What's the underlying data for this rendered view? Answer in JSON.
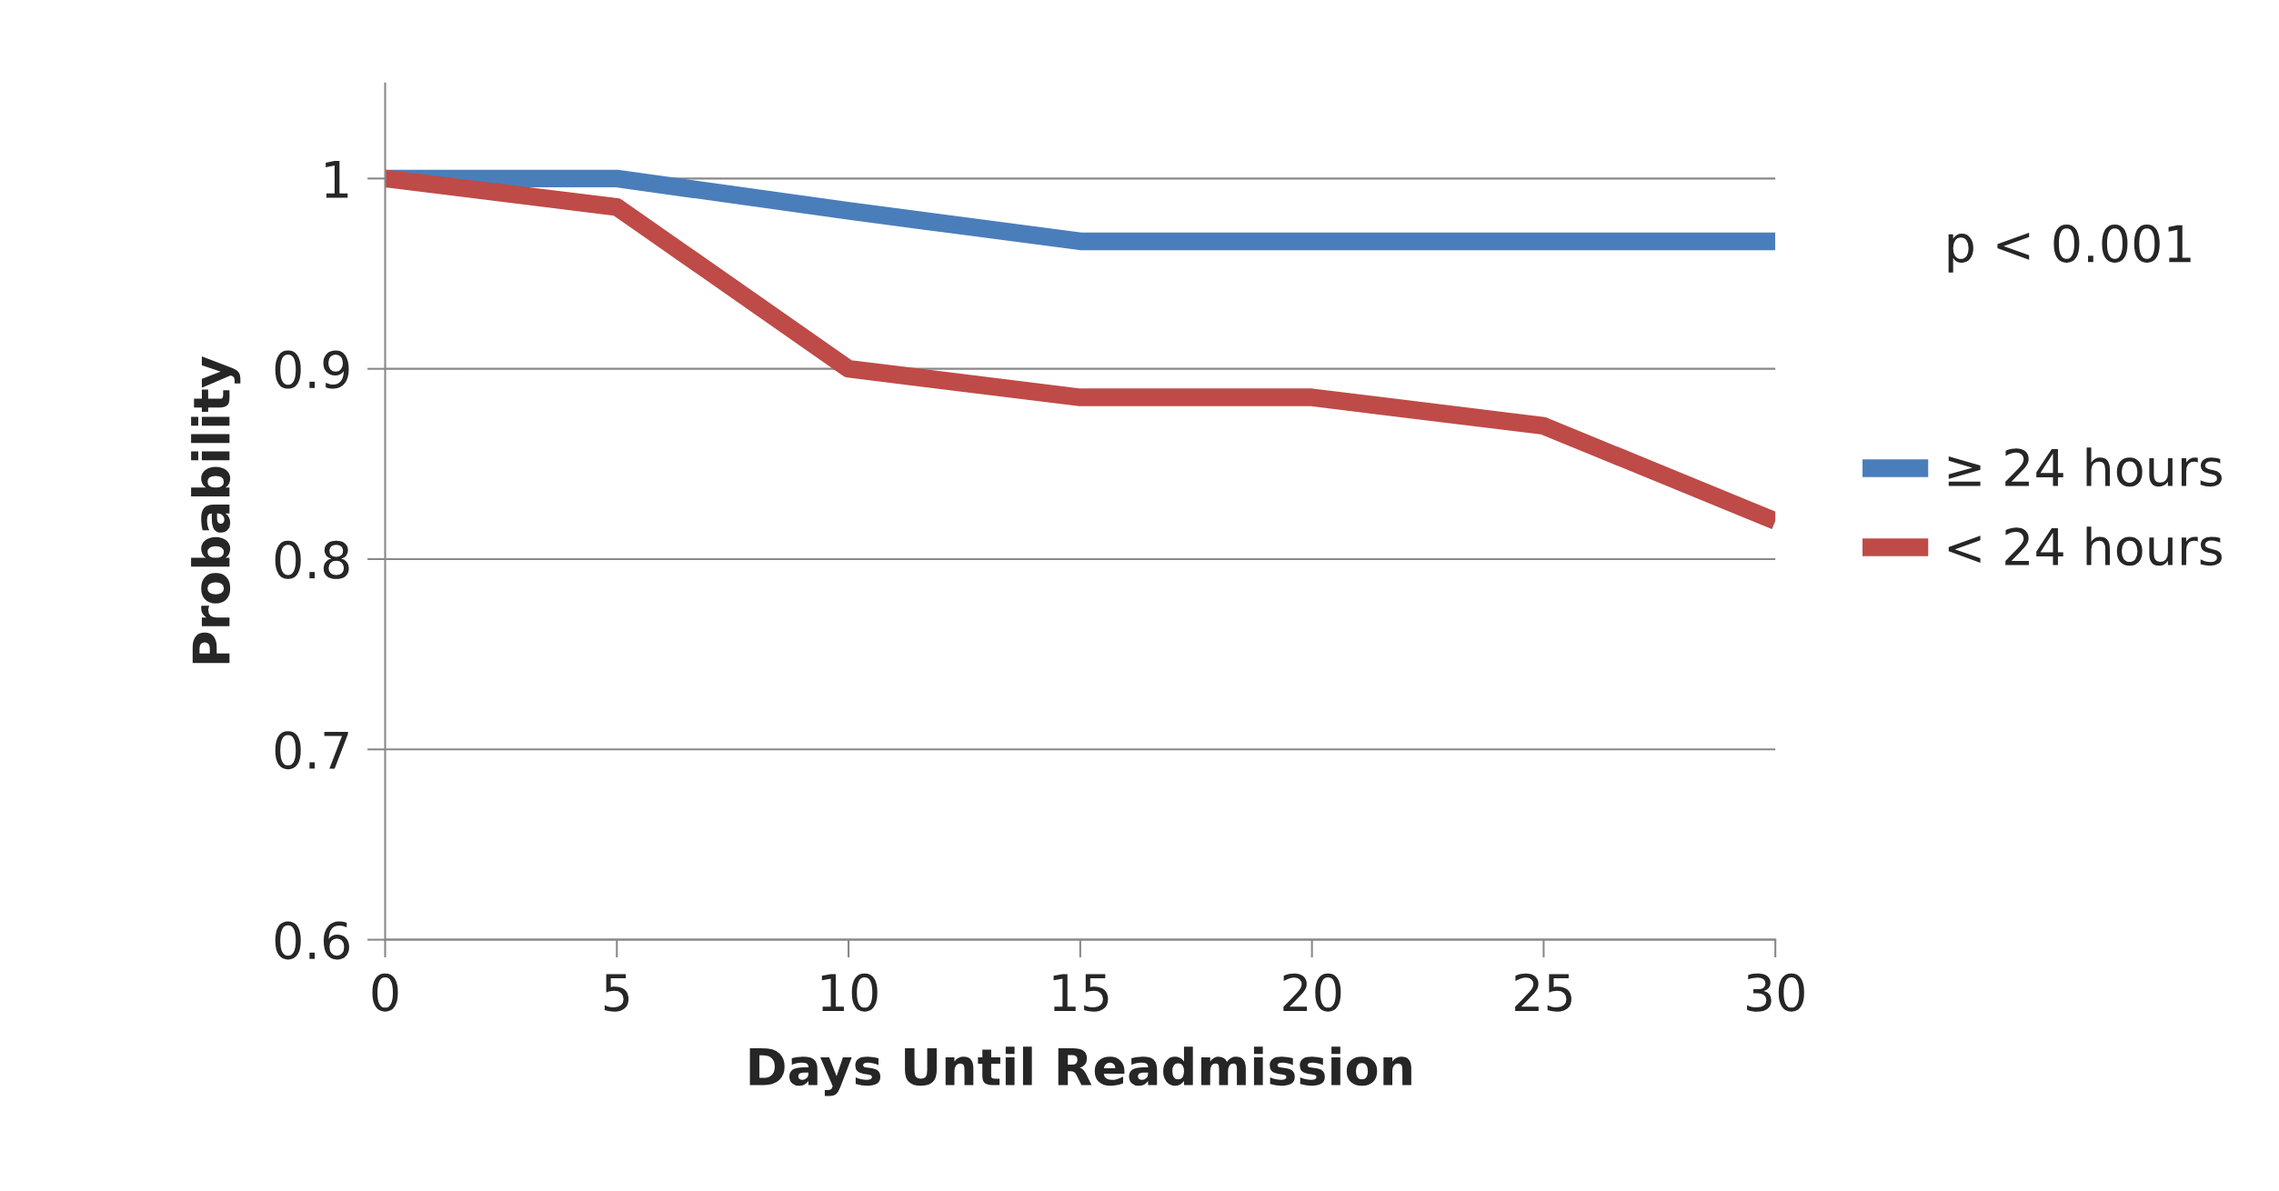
{
  "chart_data": {
    "type": "line",
    "xlabel": "Days Until Readmission",
    "ylabel": "Probability",
    "x": [
      0,
      5,
      10,
      15,
      20,
      25,
      30
    ],
    "series": [
      {
        "name": "≥ 24 hours",
        "color": "#4a7ebb",
        "values": [
          1,
          1,
          0.983,
          0.967,
          0.967,
          0.967,
          0.967
        ]
      },
      {
        "name": "< 24 hours",
        "color": "#be4b48",
        "values": [
          1,
          0.985,
          0.9,
          0.885,
          0.885,
          0.87,
          0.82
        ]
      }
    ],
    "xlim": [
      0,
      30
    ],
    "xticks": [
      0,
      5,
      10,
      15,
      20,
      25,
      30
    ],
    "ylim": [
      0.6,
      1.05
    ],
    "yticks": [
      0.6,
      0.7,
      0.8,
      0.9,
      1
    ],
    "grid": "y",
    "legend": "right",
    "marker": "none",
    "line_style": "solid",
    "annotations": [
      "p < 0.001"
    ]
  }
}
